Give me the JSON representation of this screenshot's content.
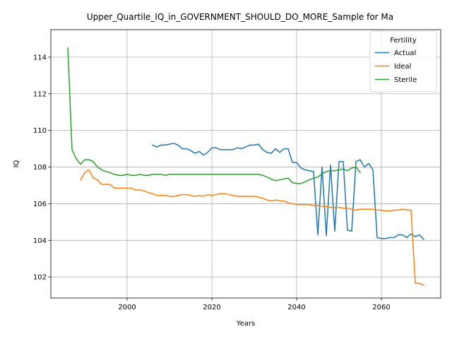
{
  "chart_data": {
    "type": "line",
    "title": "Upper_Quartile_IQ_in_GOVERNMENT_SHOULD_DO_MORE_Sample for Ma",
    "xlabel": "Years",
    "ylabel": "IQ",
    "xlim": [
      1982,
      2074
    ],
    "ylim": [
      100.85,
      115.5
    ],
    "x_ticks": [
      2000,
      2020,
      2040,
      2060
    ],
    "y_ticks": [
      102,
      104,
      106,
      108,
      110,
      112,
      114
    ],
    "grid": true,
    "legend": {
      "title": "Fertility",
      "placement": "top-right"
    },
    "series": [
      {
        "name": "Actual",
        "color": "#1f77b4",
        "x": [
          2006,
          2007,
          2008,
          2009,
          2010,
          2011,
          2012,
          2013,
          2014,
          2015,
          2016,
          2017,
          2018,
          2019,
          2020,
          2021,
          2022,
          2023,
          2024,
          2025,
          2026,
          2027,
          2028,
          2029,
          2030,
          2031,
          2032,
          2033,
          2034,
          2035,
          2036,
          2037,
          2038,
          2039,
          2040,
          2041,
          2042,
          2043,
          2044,
          2045,
          2046,
          2047,
          2048,
          2049,
          2050,
          2051,
          2052,
          2053,
          2054,
          2055,
          2056,
          2057,
          2058,
          2059,
          2060,
          2061,
          2062,
          2063,
          2064,
          2065,
          2066,
          2067,
          2068,
          2069,
          2070
        ],
        "values": [
          109.2,
          109.1,
          109.2,
          109.2,
          109.25,
          109.3,
          109.2,
          109.0,
          109.0,
          108.9,
          108.75,
          108.85,
          108.65,
          108.8,
          109.05,
          109.05,
          108.95,
          108.95,
          108.95,
          108.95,
          109.05,
          109.0,
          109.1,
          109.2,
          109.2,
          109.25,
          108.95,
          108.8,
          108.75,
          109.0,
          108.8,
          109.0,
          109.0,
          108.25,
          108.25,
          107.95,
          107.85,
          107.8,
          107.75,
          104.3,
          108.0,
          104.25,
          108.1,
          104.5,
          108.3,
          108.3,
          104.55,
          104.5,
          108.3,
          108.4,
          108.0,
          108.2,
          107.85,
          104.15,
          104.1,
          104.1,
          104.15,
          104.15,
          104.3,
          104.3,
          104.15,
          104.35,
          104.2,
          104.3,
          104.05
        ]
      },
      {
        "name": "Ideal",
        "color": "#ff7f0e",
        "x": [
          1989,
          1990,
          1991,
          1992,
          1993,
          1994,
          1995,
          1996,
          1997,
          1998,
          1999,
          2000,
          2001,
          2002,
          2003,
          2004,
          2005,
          2006,
          2007,
          2008,
          2009,
          2010,
          2011,
          2012,
          2013,
          2014,
          2015,
          2016,
          2017,
          2018,
          2019,
          2020,
          2021,
          2022,
          2023,
          2024,
          2025,
          2026,
          2027,
          2028,
          2029,
          2030,
          2031,
          2032,
          2033,
          2034,
          2035,
          2036,
          2037,
          2038,
          2039,
          2040,
          2041,
          2042,
          2043,
          2044,
          2045,
          2046,
          2047,
          2048,
          2049,
          2050,
          2051,
          2052,
          2053,
          2054,
          2055,
          2056,
          2057,
          2058,
          2059,
          2060,
          2061,
          2062,
          2063,
          2064,
          2065,
          2066,
          2067,
          2068,
          2069,
          2070
        ],
        "values": [
          107.3,
          107.7,
          107.85,
          107.4,
          107.3,
          107.05,
          107.05,
          107.05,
          106.85,
          106.85,
          106.85,
          106.85,
          106.85,
          106.75,
          106.75,
          106.7,
          106.6,
          106.55,
          106.45,
          106.45,
          106.45,
          106.4,
          106.4,
          106.45,
          106.5,
          106.5,
          106.45,
          106.4,
          106.45,
          106.4,
          106.5,
          106.45,
          106.5,
          106.55,
          106.55,
          106.5,
          106.45,
          106.4,
          106.4,
          106.4,
          106.4,
          106.4,
          106.35,
          106.3,
          106.2,
          106.15,
          106.2,
          106.15,
          106.15,
          106.05,
          106.0,
          105.95,
          105.95,
          105.95,
          105.95,
          105.9,
          105.9,
          105.85,
          105.85,
          105.8,
          105.8,
          105.8,
          105.75,
          105.75,
          105.7,
          105.65,
          105.7,
          105.7,
          105.7,
          105.7,
          105.65,
          105.65,
          105.6,
          105.6,
          105.65,
          105.65,
          105.7,
          105.65,
          105.65,
          101.65,
          101.65,
          101.55
        ]
      },
      {
        "name": "Sterile",
        "color": "#2ca02c",
        "x": [
          1986,
          1987,
          1988,
          1989,
          1990,
          1991,
          1992,
          1993,
          1994,
          1995,
          1996,
          1997,
          1998,
          1999,
          2000,
          2001,
          2002,
          2003,
          2004,
          2005,
          2006,
          2007,
          2008,
          2009,
          2010,
          2011,
          2012,
          2013,
          2014,
          2015,
          2016,
          2017,
          2018,
          2019,
          2020,
          2021,
          2022,
          2023,
          2024,
          2025,
          2026,
          2027,
          2028,
          2029,
          2030,
          2031,
          2032,
          2033,
          2034,
          2035,
          2036,
          2037,
          2038,
          2039,
          2040,
          2041,
          2042,
          2043,
          2044,
          2045,
          2046,
          2047,
          2048,
          2049,
          2050,
          2051,
          2052,
          2053,
          2054,
          2055
        ],
        "values": [
          114.5,
          108.95,
          108.45,
          108.15,
          108.4,
          108.4,
          108.3,
          108.0,
          107.85,
          107.75,
          107.7,
          107.6,
          107.55,
          107.55,
          107.6,
          107.55,
          107.55,
          107.6,
          107.55,
          107.55,
          107.6,
          107.6,
          107.6,
          107.55,
          107.6,
          107.6,
          107.6,
          107.6,
          107.6,
          107.6,
          107.6,
          107.6,
          107.6,
          107.6,
          107.6,
          107.6,
          107.6,
          107.6,
          107.6,
          107.6,
          107.6,
          107.6,
          107.6,
          107.6,
          107.6,
          107.6,
          107.55,
          107.45,
          107.35,
          107.25,
          107.3,
          107.35,
          107.4,
          107.15,
          107.1,
          107.1,
          107.2,
          107.3,
          107.4,
          107.45,
          107.65,
          107.75,
          107.8,
          107.8,
          107.85,
          107.9,
          107.8,
          107.95,
          108.0,
          107.7
        ]
      }
    ]
  }
}
